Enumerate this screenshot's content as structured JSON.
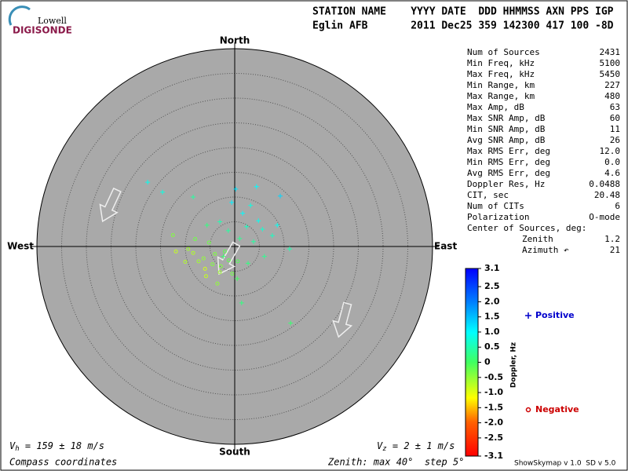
{
  "header": {
    "logo_top": "Lowell",
    "logo_bottom": "DIGISONDE",
    "line1": "STATION NAME    YYYY DATE  DDD HHMMSS AXN PPS IGP",
    "line2": "Eglin AFB       2011 Dec25 359 142300 417 100 -8D"
  },
  "stats": {
    "rows": [
      [
        "Num of Sources",
        "2431"
      ],
      [
        "Min Freq, kHz",
        "5100"
      ],
      [
        "Max Freq, kHz",
        "5450"
      ],
      [
        "Min Range, km",
        "227"
      ],
      [
        "Max Range, km",
        "480"
      ],
      [
        "Max Amp, dB",
        "63"
      ],
      [
        "Max SNR Amp, dB",
        "60"
      ],
      [
        "Min SNR Amp, dB",
        "11"
      ],
      [
        "Avg SNR Amp, dB",
        "26"
      ],
      [
        "Max RMS Err, deg",
        "12.0"
      ],
      [
        "Min RMS Err, deg",
        "0.0"
      ],
      [
        "Avg RMS Err, deg",
        "4.6"
      ],
      [
        "Doppler Res, Hz",
        "0.0488"
      ],
      [
        "CIT, sec",
        "20.48"
      ],
      [
        "Num of CITs",
        "6"
      ],
      [
        "Polarization",
        "O-mode"
      ],
      [
        "Center of Sources, deg:",
        ""
      ]
    ],
    "sub_rows": [
      [
        "Zenith",
        "1.2"
      ],
      [
        "Azimuth ↶",
        "21"
      ]
    ]
  },
  "footer": {
    "vh_symbol": "V",
    "vh_sub": "h",
    "vh_text": " = 159 ± 18 m/s",
    "vz_symbol": "V",
    "vz_sub": "z",
    "vz_text": " = 2 ± 1 m/s",
    "coords": "Compass coordinates",
    "zenith": "Zenith: max 40°  step 5°",
    "version": "ShowSkymap v 1.0  SD v 5.0"
  },
  "chart_data": {
    "type": "polar-scatter",
    "directions": {
      "north": "North",
      "south": "South",
      "east": "East",
      "west": "West"
    },
    "rlim": [
      0,
      40
    ],
    "rticks": [
      5,
      10,
      15,
      20,
      25,
      30,
      35
    ],
    "grid": true,
    "series": [
      {
        "name": "Positive",
        "color": "#0000cc",
        "marker": "+",
        "x": [
          1.6,
          3.2,
          0.2,
          2.4,
          4.8,
          -1.3,
          5.6,
          1.0,
          -3.0,
          3.8,
          -0.6,
          7.6,
          11.1,
          6.0,
          -5.6,
          -17.6,
          -14.6,
          1.4,
          11.3,
          9.2,
          4.4,
          -2.3,
          2.7,
          0.5,
          8.6,
          -8.4
        ],
        "y": [
          6.7,
          8.3,
          11.6,
          4.0,
          5.2,
          3.2,
          3.5,
          1.6,
          5.0,
          1.0,
          8.9,
          2.2,
          -0.5,
          -2.0,
          4.3,
          13.0,
          11.0,
          -11.4,
          -15.5,
          10.2,
          12.1,
          -2.0,
          -3.4,
          -6.5,
          4.3,
          10.0
        ],
        "doppler": [
          1.0,
          0.8,
          1.2,
          0.6,
          0.9,
          0.4,
          0.7,
          0.3,
          0.5,
          0.4,
          1.1,
          0.6,
          0.5,
          0.3,
          0.2,
          0.9,
          0.8,
          0.2,
          0.1,
          1.3,
          1.0,
          0.1,
          0.2,
          0.0,
          0.9,
          0.4
        ]
      },
      {
        "name": "Negative",
        "color": "#cc0000",
        "marker": "o",
        "x": [
          -6.3,
          -8.4,
          -4.5,
          -3.0,
          -9.4,
          -11.9,
          -6.0,
          -5.2,
          -2.0,
          -7.3,
          -4.0,
          -0.5,
          -10.0,
          -5.8,
          -3.5,
          -1.2,
          -12.5,
          -8.0,
          -2.8,
          0.6
        ],
        "y": [
          -2.4,
          -1.3,
          -3.6,
          -5.2,
          -0.5,
          -1.0,
          -4.5,
          0.8,
          -1.0,
          -3.0,
          -1.5,
          -5.5,
          -3.1,
          -6.0,
          -7.5,
          -2.8,
          2.3,
          1.5,
          -4.0,
          -3.0
        ],
        "doppler": [
          -0.5,
          -0.7,
          -0.4,
          -0.6,
          -0.6,
          -0.8,
          -0.9,
          -0.3,
          -0.2,
          -0.6,
          -0.4,
          -0.3,
          -0.7,
          -0.8,
          -0.5,
          -0.2,
          -0.4,
          -0.3,
          -0.4,
          -0.1
        ]
      }
    ],
    "colorbar": {
      "label": "Doppler, Hz",
      "lim": [
        -3.1,
        3.1
      ],
      "ticks": [
        3.1,
        2.5,
        {
          "value": 2,
          "label": "2.0"
        },
        1.5,
        {
          "value": 1,
          "label": "1.0"
        },
        0.5,
        0,
        -0.5,
        {
          "value": -1,
          "label": "-1.0"
        },
        -1.5,
        {
          "value": -2,
          "label": "-2.0"
        },
        -2.5,
        -3.1
      ]
    }
  }
}
